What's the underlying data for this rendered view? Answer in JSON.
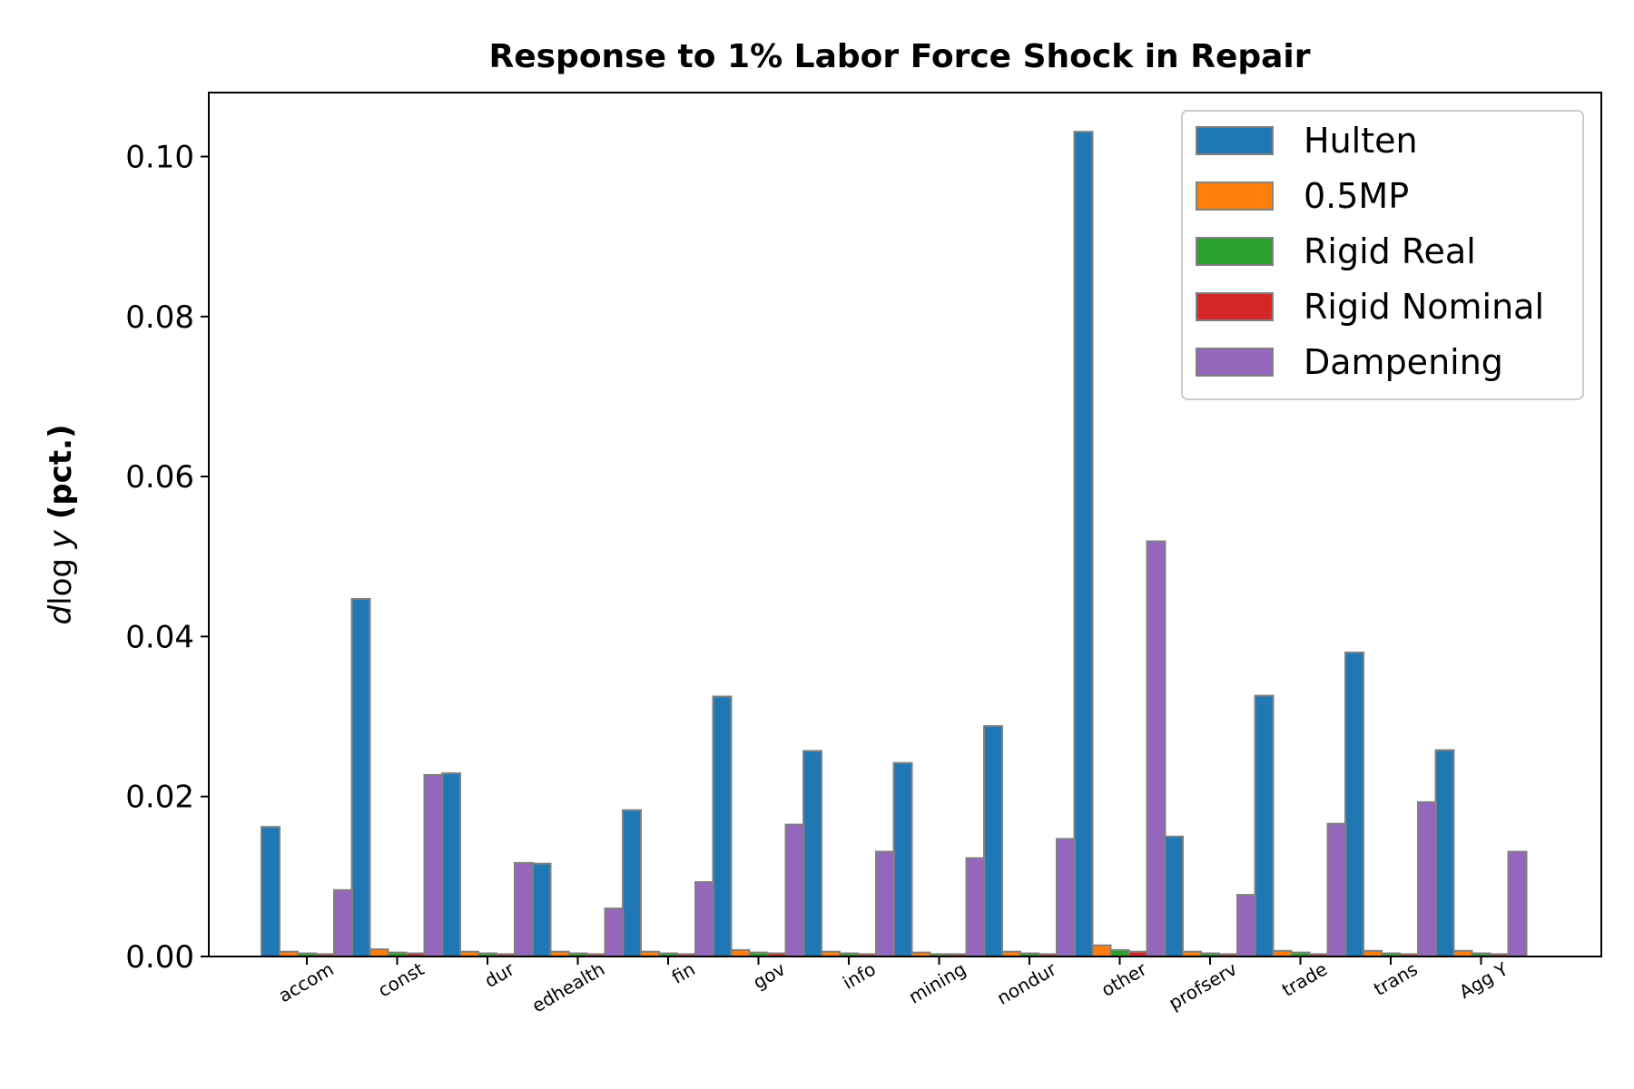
{
  "chart_data": {
    "type": "bar",
    "title": "Response to 1% Labor Force Shock in Repair",
    "ylabel": {
      "prefix": "d log y",
      "suffix": "(pct.)"
    },
    "xlabel": "",
    "ylim": [
      0,
      0.108
    ],
    "yticks": [
      0.0,
      0.02,
      0.04,
      0.06,
      0.08,
      0.1
    ],
    "ytick_labels": [
      "0.00",
      "0.02",
      "0.04",
      "0.06",
      "0.08",
      "0.10"
    ],
    "categories": [
      "accom",
      "const",
      "dur",
      "edhealth",
      "fin",
      "gov",
      "info",
      "mining",
      "nondur",
      "other",
      "profserv",
      "trade",
      "trans",
      "Agg Y"
    ],
    "series": [
      {
        "name": "Hulten",
        "color": "#1f77b4",
        "values": [
          0.0162,
          0.0447,
          0.0229,
          0.0116,
          0.0183,
          0.0325,
          0.0257,
          0.0242,
          0.0288,
          0.1031,
          0.015,
          0.0326,
          0.038,
          0.0258
        ]
      },
      {
        "name": "0.5MP",
        "color": "#ff7f0e",
        "values": [
          0.0006,
          0.0009,
          0.0006,
          0.0006,
          0.0006,
          0.0008,
          0.0006,
          0.0005,
          0.0006,
          0.0014,
          0.0006,
          0.0007,
          0.0007,
          0.0007
        ]
      },
      {
        "name": "Rigid Real",
        "color": "#2ca02c",
        "values": [
          0.0004,
          0.0005,
          0.0004,
          0.0004,
          0.0004,
          0.0005,
          0.0004,
          0.0003,
          0.0004,
          0.0008,
          0.0004,
          0.0005,
          0.0004,
          0.0004
        ]
      },
      {
        "name": "Rigid Nominal",
        "color": "#d62728",
        "values": [
          0.0003,
          0.0004,
          0.0003,
          0.0003,
          0.0003,
          0.0004,
          0.0003,
          0.0003,
          0.0003,
          0.0006,
          0.0003,
          0.0003,
          0.0003,
          0.0003
        ]
      },
      {
        "name": "Dampening",
        "color": "#9467bd",
        "values": [
          0.0083,
          0.0227,
          0.0117,
          0.006,
          0.0093,
          0.0165,
          0.0131,
          0.0123,
          0.0147,
          0.0519,
          0.0077,
          0.0166,
          0.0193,
          0.0131
        ]
      }
    ],
    "legend_position": "top-right",
    "grid": false
  }
}
